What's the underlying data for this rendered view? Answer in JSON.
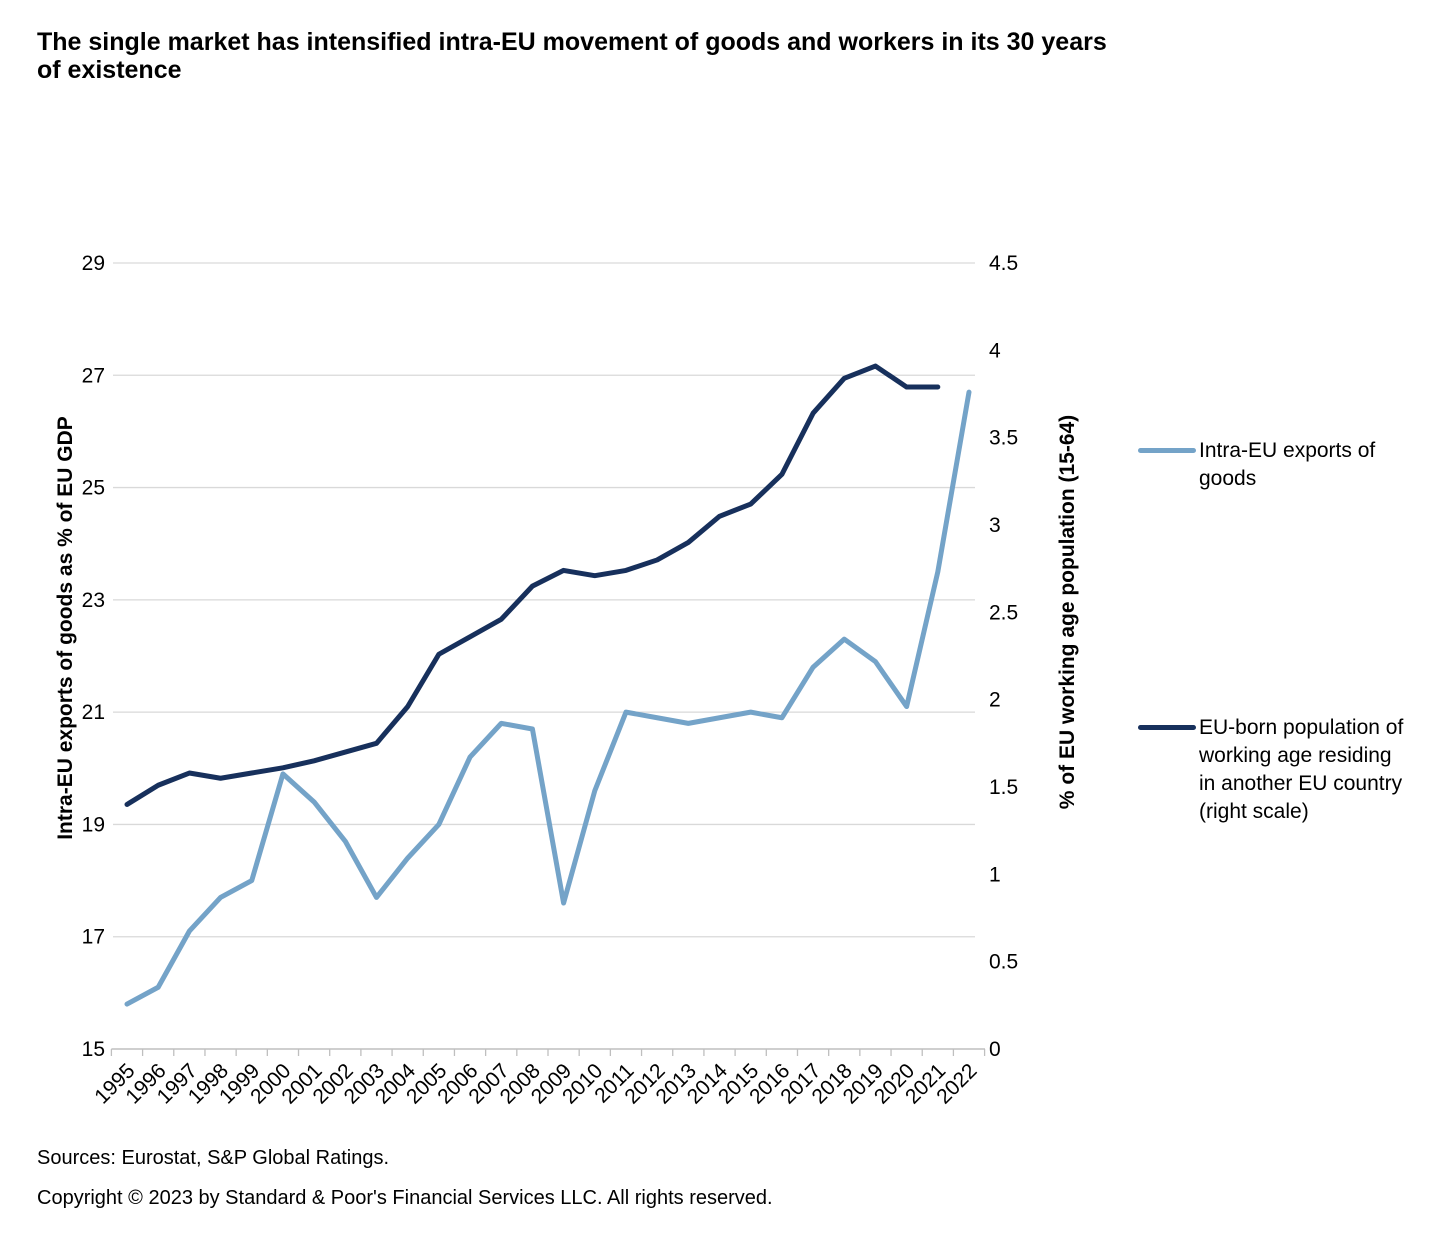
{
  "title": "The single market has intensified intra-EU movement of goods and workers in its 30 years of existence",
  "footer": {
    "sources": "Sources: Eurostat, S&P Global Ratings.",
    "copyright": "Copyright © 2023 by Standard & Poor's Financial Services LLC. All rights reserved."
  },
  "chart_data": {
    "type": "line",
    "x": [
      "1995",
      "1996",
      "1997",
      "1998",
      "1999",
      "2000",
      "2001",
      "2002",
      "2003",
      "2004",
      "2005",
      "2006",
      "2007",
      "2008",
      "2009",
      "2010",
      "2011",
      "2012",
      "2013",
      "2014",
      "2015",
      "2016",
      "2017",
      "2018",
      "2019",
      "2020",
      "2021",
      "2022"
    ],
    "left_axis": {
      "title": "Intra-EU exports of goods as % of EU GDP",
      "min": 15,
      "max": 29,
      "ticks": [
        29,
        27,
        25,
        23,
        21,
        19,
        17,
        15
      ]
    },
    "right_axis": {
      "title": "% of EU working age population (15-64)",
      "min": 0,
      "max": 4.5,
      "ticks": [
        4.5,
        4,
        3.5,
        3,
        2.5,
        2,
        1.5,
        1,
        0.5,
        0
      ]
    },
    "grid": "horizontal",
    "legend_position": "right",
    "series": [
      {
        "key": "intra-eu-exports-of-goods",
        "name": "Intra-EU exports of goods",
        "axis": "left",
        "color": "#74a3c8",
        "values": [
          15.8,
          16.1,
          17.1,
          17.7,
          18.0,
          19.9,
          19.4,
          18.7,
          17.7,
          18.4,
          19.0,
          20.2,
          20.8,
          20.7,
          17.6,
          19.6,
          21.0,
          20.9,
          20.8,
          20.9,
          21.0,
          20.9,
          21.8,
          22.3,
          21.9,
          21.1,
          23.5,
          26.7
        ]
      },
      {
        "key": "eu-born-population-abroad",
        "name": "EU-born population of working age residing in another EU country (right scale)",
        "axis": "right",
        "color": "#17305c",
        "values": [
          1.4,
          1.51,
          1.58,
          1.55,
          1.58,
          1.61,
          1.65,
          1.7,
          1.75,
          1.96,
          2.26,
          2.36,
          2.46,
          2.65,
          2.74,
          2.71,
          2.74,
          2.8,
          2.9,
          3.05,
          3.12,
          3.29,
          3.64,
          3.84,
          3.91,
          3.79,
          3.79,
          null
        ]
      }
    ],
    "legend": [
      {
        "label": "Intra-EU exports of goods"
      },
      {
        "label": "EU-born population of working age residing in another EU country (right scale)"
      }
    ],
    "colors": {
      "gridline": "#d9d9d9",
      "axis_line": "#bfbfbf",
      "text": "#000000"
    }
  }
}
